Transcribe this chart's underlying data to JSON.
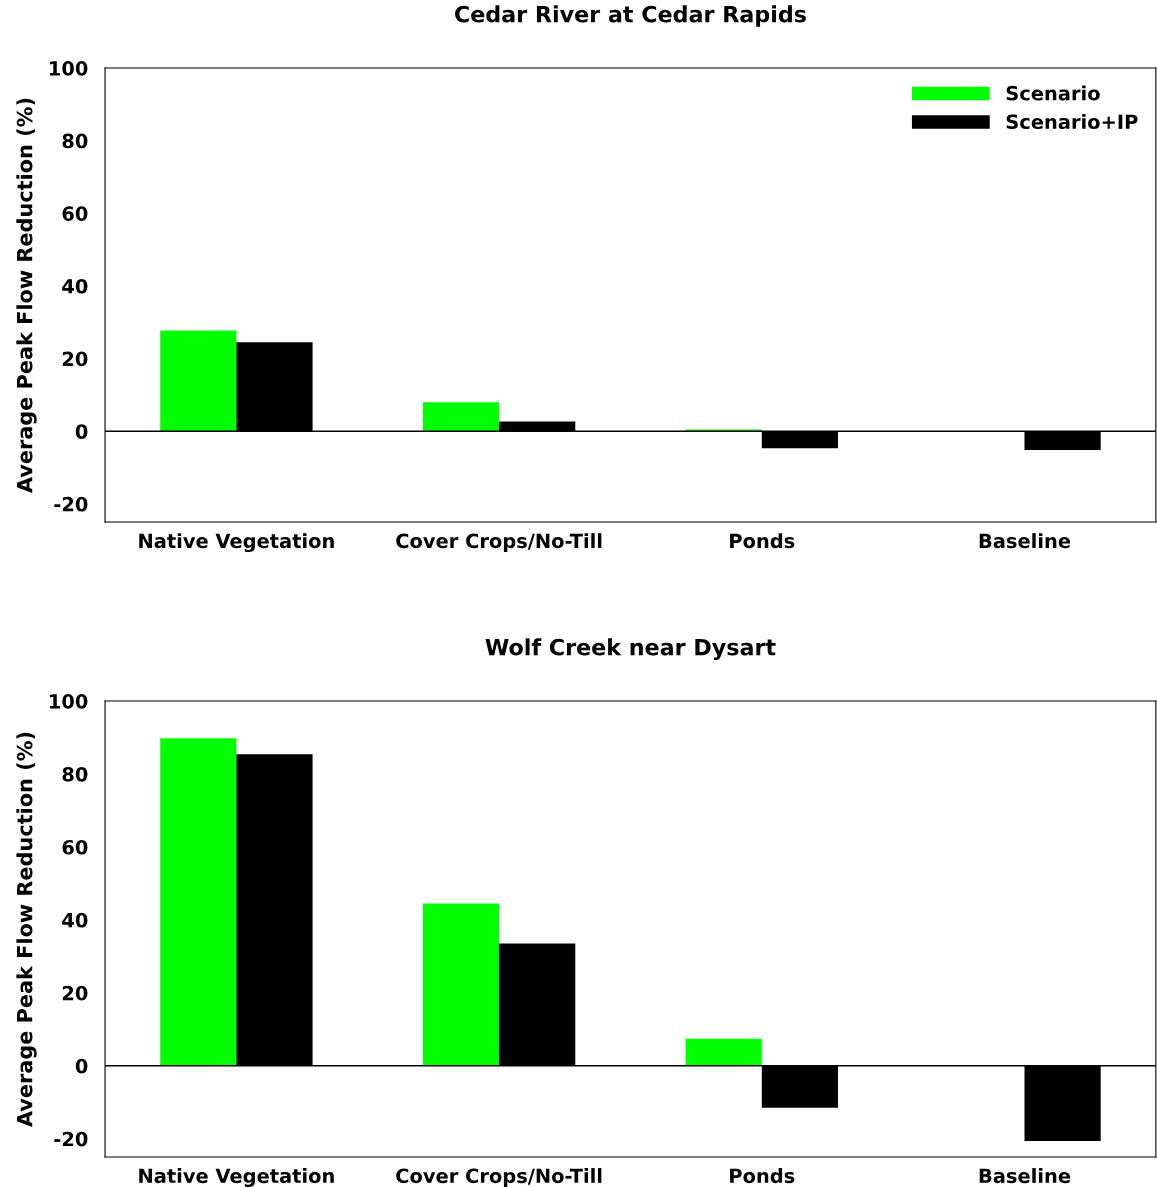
{
  "chart_data": [
    {
      "type": "bar",
      "title": "Cedar River at Cedar Rapids",
      "ylabel": "Average Peak Flow Reduction (%)",
      "categories": [
        "Native Vegetation",
        "Cover Crops/No-Till",
        "Ponds",
        "Baseline"
      ],
      "series": [
        {
          "name": "Scenario",
          "color": "#00ff00",
          "values": [
            27.7,
            8.0,
            0.5,
            0
          ]
        },
        {
          "name": "Scenario+IP",
          "color": "#000000",
          "values": [
            24.5,
            2.7,
            -4.7,
            -5.2
          ]
        }
      ],
      "ylim": [
        -25,
        100
      ],
      "yticks": [
        -20,
        0,
        20,
        40,
        60,
        80,
        100
      ],
      "ref_lines": [
        {
          "axis": "y",
          "value": 0,
          "color": "#000000"
        }
      ],
      "grid": false,
      "legend": "top right"
    },
    {
      "type": "bar",
      "title": "Wolf Creek near Dysart",
      "ylabel": "Average Peak Flow Reduction (%)",
      "categories": [
        "Native Vegetation",
        "Cover Crops/No-Till",
        "Ponds",
        "Baseline"
      ],
      "series": [
        {
          "color": "#00ff00",
          "values": [
            89.8,
            44.5,
            7.4,
            0
          ]
        },
        {
          "color": "#000000",
          "values": [
            85.4,
            33.5,
            -11.5,
            -20.6
          ]
        }
      ],
      "ylim": [
        -25,
        100
      ],
      "yticks": [
        -20,
        0,
        20,
        40,
        60,
        80,
        100
      ],
      "ref_lines": [
        {
          "axis": "y",
          "value": 0,
          "color": "#000000"
        }
      ],
      "grid": false,
      "legend": false
    }
  ]
}
